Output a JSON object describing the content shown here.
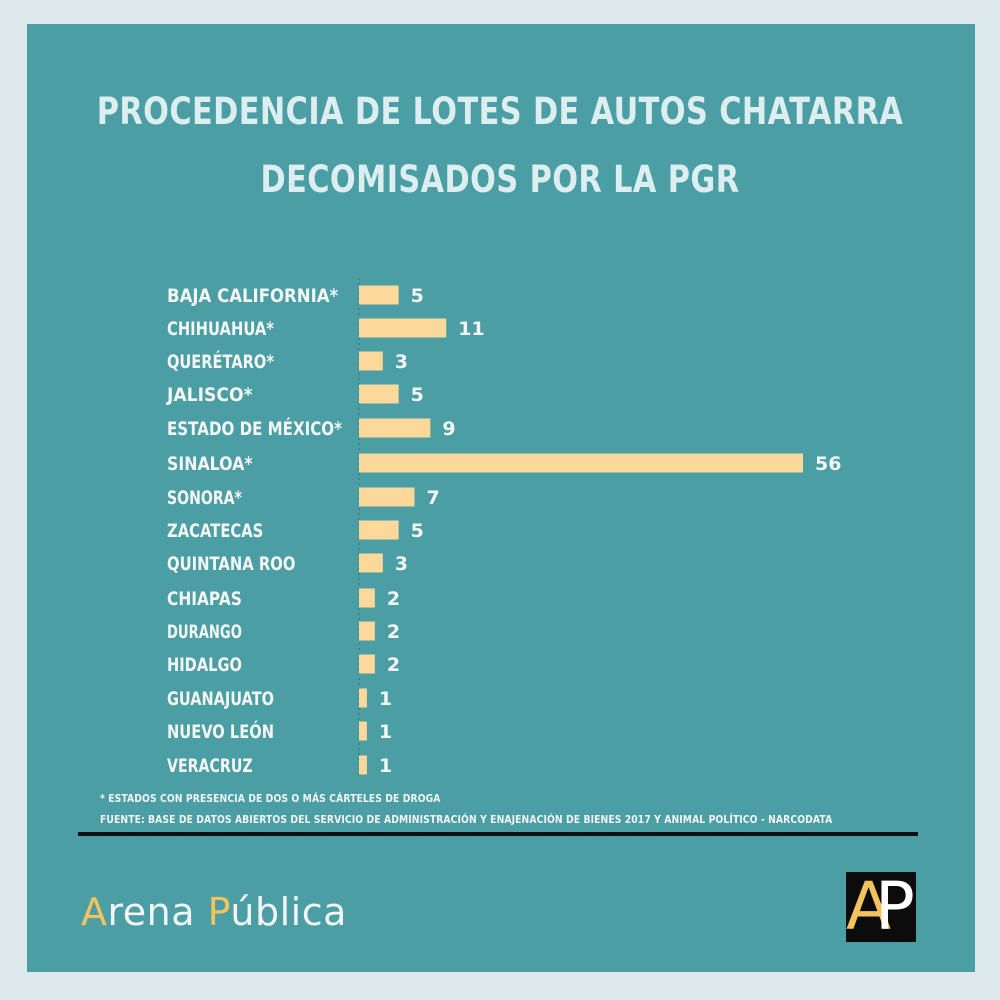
{
  "title_lines": [
    "PROCEDENCIA DE LOTES DE AUTOS CHATARRA",
    "DECOMISADOS POR LA PGR"
  ],
  "chart_data": {
    "type": "bar",
    "orientation": "horizontal",
    "title": "PROCEDENCIA DE LOTES DE AUTOS CHATARRA DECOMISADOS POR LA PGR",
    "categories": [
      "BAJA CALIFORNIA*",
      "CHIHUAHUA*",
      "QUERÉTARO*",
      "JALISCO*",
      "ESTADO DE MÉXICO*",
      "SINALOA*",
      "SONORA*",
      "ZACATECAS",
      "QUINTANA ROO",
      "CHIAPAS",
      "DURANGO",
      "HIDALGO",
      "GUANAJUATO",
      "NUEVO LEÓN",
      "VERACRUZ"
    ],
    "values": [
      5,
      11,
      3,
      5,
      9,
      56,
      7,
      5,
      3,
      2,
      2,
      2,
      1,
      1,
      1
    ],
    "value_labels": [
      "5",
      "11",
      "3",
      "5",
      "9",
      "56",
      "7",
      "5",
      "3",
      "2",
      "2",
      "2",
      "1",
      "1",
      "1"
    ],
    "bar_color": "#fcd99a",
    "grid": false,
    "legend": "none"
  },
  "notes": {
    "footnote": "* ESTADOS CON PRESENCIA DE DOS O MÁS CÁRTELES DE DROGA",
    "source": "FUENTE: BASE DE DATOS ABIERTOS DEL SERVICIO DE ADMINISTRACIÓN Y ENAJENACIÓN DE BIENES 2017 Y ANIMAL POLÍTICO - NARCODATA"
  },
  "brand": {
    "a": "A",
    "rena": "rena ",
    "p": "P",
    "ublica": "ública"
  },
  "logo": {
    "a": "A",
    "p": "P"
  },
  "colors": {
    "background": "#4a9ea4",
    "outer": "#dde9ec",
    "bar": "#fcd99a",
    "accent": "#f5c35e",
    "text": "#f2f5f4"
  }
}
